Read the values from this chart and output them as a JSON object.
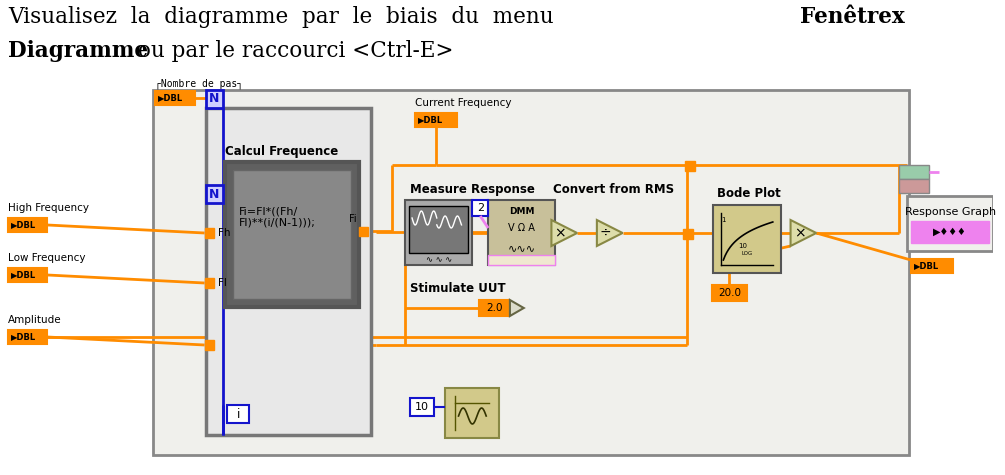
{
  "bg": "#ffffff",
  "orange": "#FF8C00",
  "blue": "#1414CC",
  "gray_dark": "#666666",
  "gray_med": "#AAAAAA",
  "panel_bg": "#F0F0EC",
  "loop_bg": "#E8E8E8",
  "inner_bg": "#808080",
  "pink": "#EE82EE",
  "tan": "#D2C98A",
  "title1_normal": "Visualisez  la  diagramme  par  le  biais  du  menu  ",
  "title1_bold": "Fenêtrex",
  "title2_bold": "Diagramme",
  "title2_normal": " ou par le raccourci <Ctrl-E>"
}
